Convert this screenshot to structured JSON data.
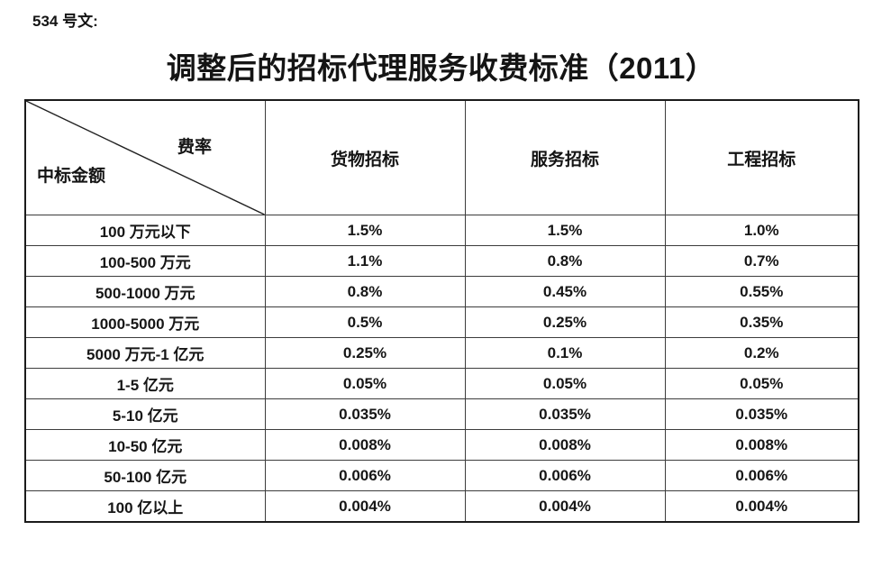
{
  "doc_number": "534 号文:",
  "title": "调整后的招标代理服务收费标准（2011）",
  "table": {
    "corner": {
      "top_right": "费率",
      "bottom_left": "中标金额"
    },
    "columns": [
      "货物招标",
      "服务招标",
      "工程招标"
    ],
    "rows": [
      {
        "label": "100 万元以下",
        "values": [
          "1.5%",
          "1.5%",
          "1.0%"
        ]
      },
      {
        "label": "100-500 万元",
        "values": [
          "1.1%",
          "0.8%",
          "0.7%"
        ]
      },
      {
        "label": "500-1000 万元",
        "values": [
          "0.8%",
          "0.45%",
          "0.55%"
        ]
      },
      {
        "label": "1000-5000 万元",
        "values": [
          "0.5%",
          "0.25%",
          "0.35%"
        ]
      },
      {
        "label": "5000 万元-1 亿元",
        "values": [
          "0.25%",
          "0.1%",
          "0.2%"
        ]
      },
      {
        "label": "1-5 亿元",
        "values": [
          "0.05%",
          "0.05%",
          "0.05%"
        ]
      },
      {
        "label": "5-10 亿元",
        "values": [
          "0.035%",
          "0.035%",
          "0.035%"
        ]
      },
      {
        "label": "10-50 亿元",
        "values": [
          "0.008%",
          "0.008%",
          "0.008%"
        ]
      },
      {
        "label": "50-100 亿元",
        "values": [
          "0.006%",
          "0.006%",
          "0.006%"
        ]
      },
      {
        "label": "100 亿以上",
        "values": [
          "0.004%",
          "0.004%",
          "0.004%"
        ]
      }
    ]
  },
  "colors": {
    "text": "#141414",
    "border_outer": "#1b1b1b",
    "border_inner": "#3c3c3c",
    "background": "#ffffff"
  }
}
